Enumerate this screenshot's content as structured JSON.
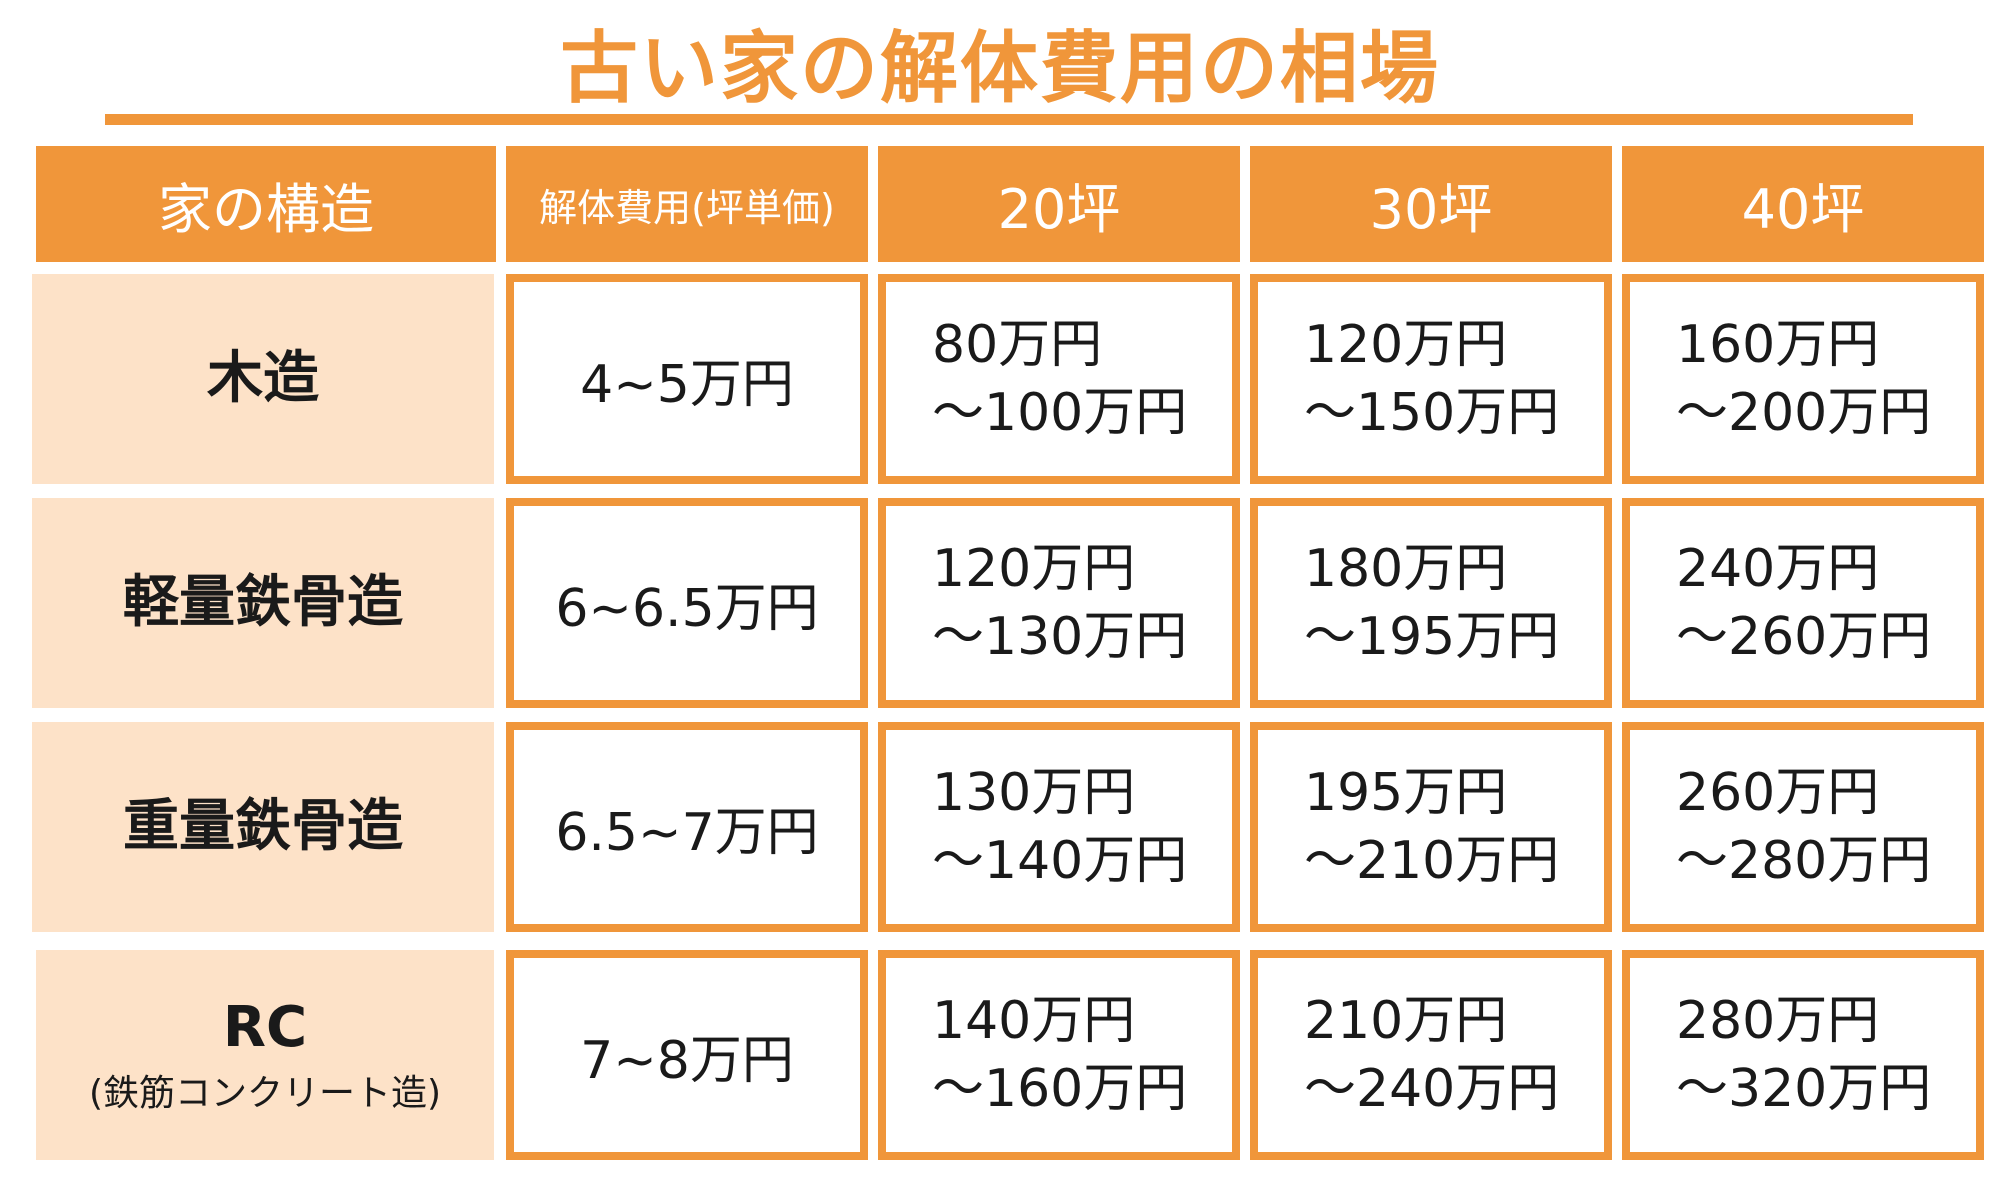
{
  "title": "古い家の解体費用の相場",
  "headers": [
    "家の構造",
    "解体費用(坪単価)",
    "20坪",
    "30坪",
    "40坪"
  ],
  "rows": [
    {
      "structure": "木造",
      "structure_sub": "",
      "unit_price": "4~5万円",
      "prices": [
        {
          "from": "80万円",
          "to": "〜100万円"
        },
        {
          "from": "120万円",
          "to": "〜150万円"
        },
        {
          "from": "160万円",
          "to": "〜200万円"
        }
      ]
    },
    {
      "structure": "軽量鉄骨造",
      "structure_sub": "",
      "unit_price": "6~6.5万円",
      "prices": [
        {
          "from": "120万円",
          "to": "〜130万円"
        },
        {
          "from": "180万円",
          "to": "〜195万円"
        },
        {
          "from": "240万円",
          "to": "〜260万円"
        }
      ]
    },
    {
      "structure": "重量鉄骨造",
      "structure_sub": "",
      "unit_price": "6.5~7万円",
      "prices": [
        {
          "from": "130万円",
          "to": "〜140万円"
        },
        {
          "from": "195万円",
          "to": "〜210万円"
        },
        {
          "from": "260万円",
          "to": "〜280万円"
        }
      ]
    },
    {
      "structure": "RC",
      "structure_sub": "(鉄筋コンクリート造)",
      "unit_price": "7~8万円",
      "prices": [
        {
          "from": "140万円",
          "to": "〜160万円"
        },
        {
          "from": "210万円",
          "to": "〜240万円"
        },
        {
          "from": "280万円",
          "to": "〜320万円"
        }
      ]
    }
  ],
  "colors": {
    "accent": "#f0963a",
    "row_header_bg": "#fde2c8",
    "text": "#1a1a1a"
  }
}
